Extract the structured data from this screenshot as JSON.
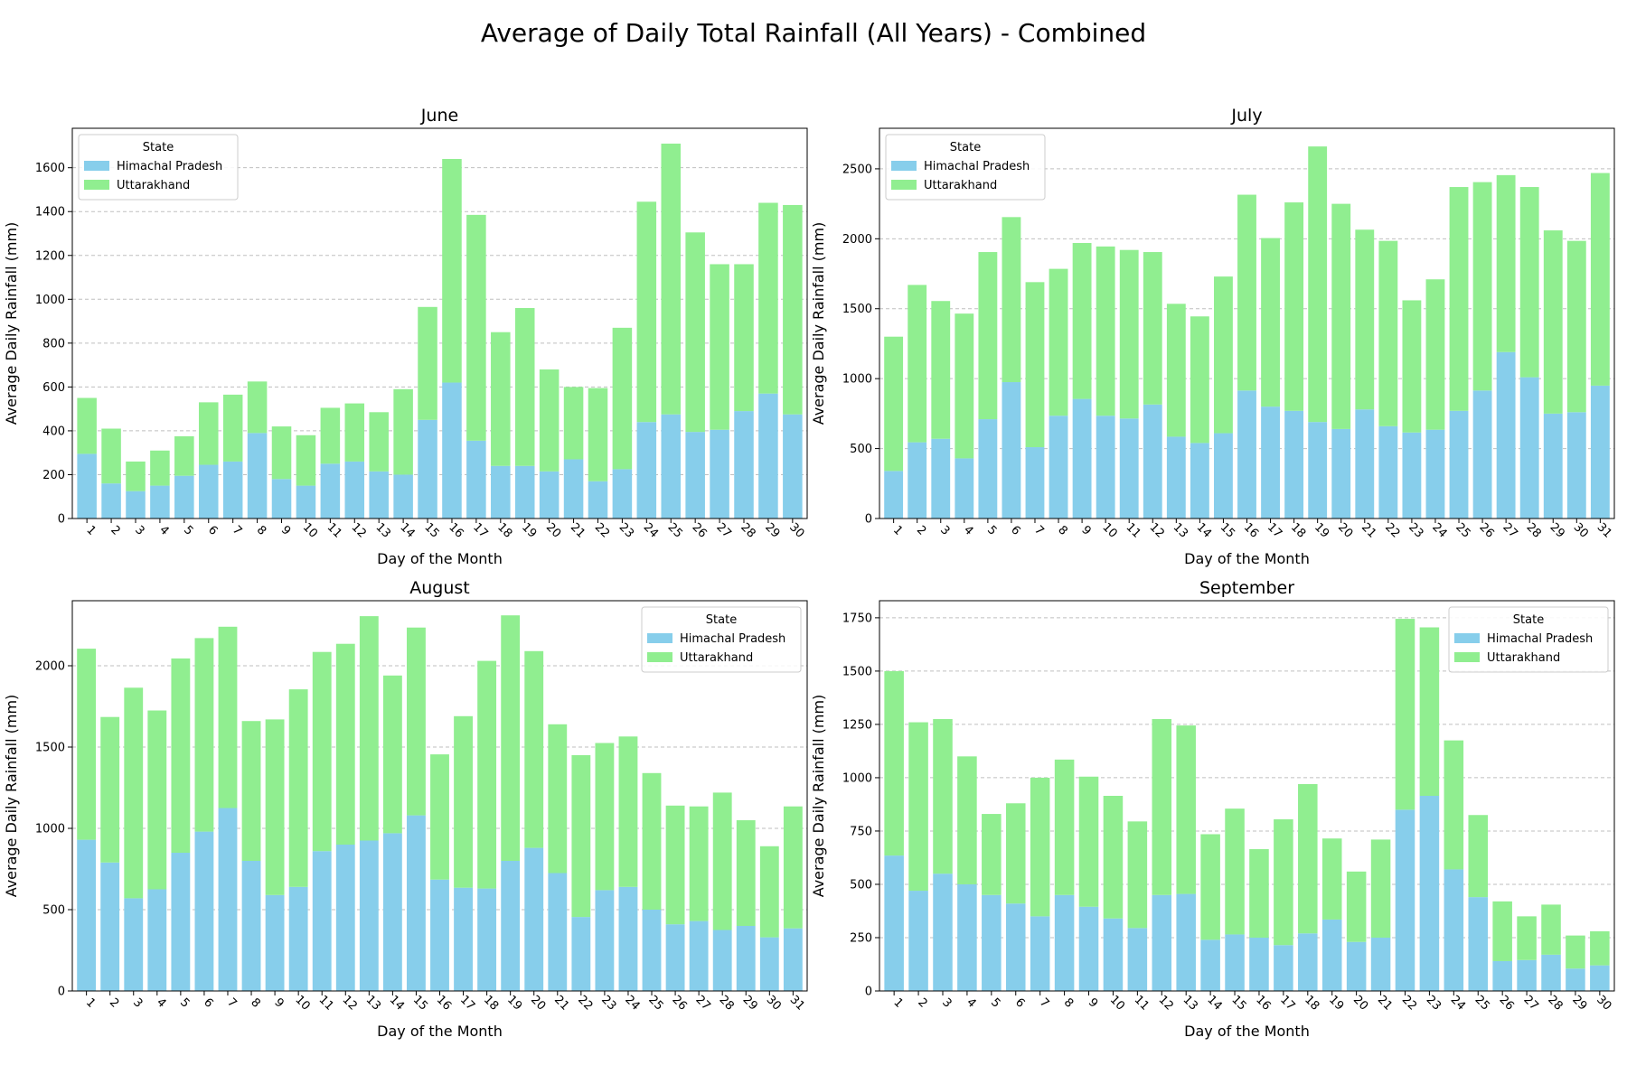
{
  "figure": {
    "title": "Average of Daily Total Rainfall (All Years) - Combined"
  },
  "colors": {
    "himachal": "#87ceeb",
    "uttarakhand": "#90ee90"
  },
  "chart_data": [
    {
      "type": "bar",
      "stacked": true,
      "title": "June",
      "xlabel": "Day of the Month",
      "ylabel": "Average Daily Rainfall (mm)",
      "ylim": [
        0,
        1780
      ],
      "yticks": [
        0,
        200,
        400,
        600,
        800,
        1000,
        1200,
        1400,
        1600
      ],
      "grid": "y",
      "legend": {
        "title": "State",
        "placement": "upper-left"
      },
      "categories": [
        "1",
        "2",
        "3",
        "4",
        "5",
        "6",
        "7",
        "8",
        "9",
        "10",
        "11",
        "12",
        "13",
        "14",
        "15",
        "16",
        "17",
        "18",
        "19",
        "20",
        "21",
        "22",
        "23",
        "24",
        "25",
        "26",
        "27",
        "28",
        "29",
        "30"
      ],
      "series": [
        {
          "name": "Himachal Pradesh",
          "values": [
            295,
            160,
            125,
            150,
            195,
            245,
            260,
            390,
            180,
            150,
            250,
            260,
            215,
            200,
            450,
            620,
            355,
            240,
            240,
            215,
            270,
            170,
            225,
            440,
            475,
            395,
            405,
            490,
            570,
            475
          ]
        },
        {
          "name": "Uttarakhand",
          "values": [
            255,
            250,
            135,
            160,
            180,
            285,
            305,
            235,
            240,
            230,
            255,
            265,
            270,
            390,
            515,
            1020,
            1030,
            610,
            720,
            465,
            330,
            425,
            645,
            1005,
            1235,
            910,
            755,
            670,
            870,
            955
          ]
        }
      ]
    },
    {
      "type": "bar",
      "stacked": true,
      "title": "July",
      "xlabel": "Day of the Month",
      "ylabel": "Average Daily Rainfall (mm)",
      "ylim": [
        0,
        2790
      ],
      "yticks": [
        0,
        500,
        1000,
        1500,
        2000,
        2500
      ],
      "grid": "y",
      "legend": {
        "title": "State",
        "placement": "upper-left"
      },
      "categories": [
        "1",
        "2",
        "3",
        "4",
        "5",
        "6",
        "7",
        "8",
        "9",
        "10",
        "11",
        "12",
        "13",
        "14",
        "15",
        "16",
        "17",
        "18",
        "19",
        "20",
        "21",
        "22",
        "23",
        "24",
        "25",
        "26",
        "27",
        "28",
        "29",
        "30",
        "31"
      ],
      "series": [
        {
          "name": "Himachal Pradesh",
          "values": [
            340,
            545,
            570,
            430,
            710,
            975,
            510,
            735,
            855,
            735,
            715,
            815,
            585,
            540,
            610,
            915,
            800,
            770,
            690,
            640,
            780,
            660,
            615,
            635,
            770,
            915,
            1190,
            1010,
            750,
            760,
            950
          ]
        },
        {
          "name": "Uttarakhand",
          "values": [
            960,
            1125,
            985,
            1035,
            1195,
            1180,
            1180,
            1050,
            1115,
            1210,
            1205,
            1090,
            950,
            905,
            1120,
            1400,
            1205,
            1490,
            1970,
            1610,
            1285,
            1325,
            945,
            1075,
            1600,
            1490,
            1265,
            1360,
            1310,
            1225,
            1520
          ]
        }
      ]
    },
    {
      "type": "bar",
      "stacked": true,
      "title": "August",
      "xlabel": "Day of the Month",
      "ylabel": "Average Daily Rainfall (mm)",
      "ylim": [
        0,
        2400
      ],
      "yticks": [
        0,
        500,
        1000,
        1500,
        2000
      ],
      "grid": "y",
      "legend": {
        "title": "State",
        "placement": "upper-right"
      },
      "categories": [
        "1",
        "2",
        "3",
        "4",
        "5",
        "6",
        "7",
        "8",
        "9",
        "10",
        "11",
        "12",
        "13",
        "14",
        "15",
        "16",
        "17",
        "18",
        "19",
        "20",
        "21",
        "22",
        "23",
        "24",
        "25",
        "26",
        "27",
        "28",
        "29",
        "30",
        "31"
      ],
      "series": [
        {
          "name": "Himachal Pradesh",
          "values": [
            930,
            790,
            570,
            625,
            850,
            980,
            1125,
            800,
            590,
            640,
            860,
            900,
            925,
            970,
            1080,
            685,
            635,
            630,
            800,
            880,
            725,
            455,
            620,
            640,
            500,
            410,
            430,
            375,
            400,
            330,
            385
          ]
        },
        {
          "name": "Uttarakhand",
          "values": [
            1175,
            895,
            1295,
            1100,
            1195,
            1190,
            1115,
            860,
            1080,
            1215,
            1225,
            1235,
            1380,
            970,
            1155,
            770,
            1055,
            1400,
            1510,
            1210,
            915,
            995,
            905,
            925,
            840,
            730,
            705,
            845,
            650,
            560,
            750
          ]
        }
      ]
    },
    {
      "type": "bar",
      "stacked": true,
      "title": "September",
      "xlabel": "Day of the Month",
      "ylabel": "Average Daily Rainfall (mm)",
      "ylim": [
        0,
        1830
      ],
      "yticks": [
        0,
        250,
        500,
        750,
        1000,
        1250,
        1500,
        1750
      ],
      "grid": "y",
      "legend": {
        "title": "State",
        "placement": "upper-right"
      },
      "categories": [
        "1",
        "2",
        "3",
        "4",
        "5",
        "6",
        "7",
        "8",
        "9",
        "10",
        "11",
        "12",
        "13",
        "14",
        "15",
        "16",
        "17",
        "18",
        "19",
        "20",
        "21",
        "22",
        "23",
        "24",
        "25",
        "26",
        "27",
        "28",
        "29",
        "30"
      ],
      "series": [
        {
          "name": "Himachal Pradesh",
          "values": [
            635,
            470,
            550,
            500,
            450,
            410,
            350,
            450,
            395,
            340,
            295,
            450,
            455,
            240,
            265,
            250,
            215,
            270,
            335,
            230,
            250,
            850,
            915,
            570,
            440,
            140,
            145,
            170,
            105,
            120
          ]
        },
        {
          "name": "Uttarakhand",
          "values": [
            865,
            790,
            725,
            600,
            380,
            470,
            650,
            635,
            610,
            575,
            500,
            825,
            790,
            495,
            590,
            415,
            590,
            700,
            380,
            330,
            460,
            895,
            790,
            605,
            385,
            280,
            205,
            235,
            155,
            160
          ]
        }
      ]
    }
  ]
}
